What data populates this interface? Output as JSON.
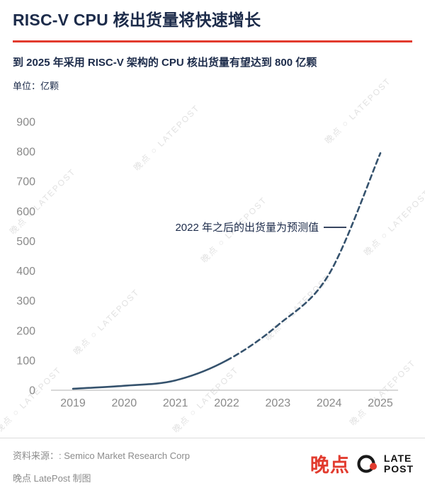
{
  "header": {
    "title": "RISC-V CPU 核出货量将快速增长",
    "subtitle": "到 2025 年采用 RISC-V 架构的 CPU 核出货量有望达到 800 亿颗",
    "unit_label": "单位：亿颗"
  },
  "chart_data": {
    "type": "line",
    "title": "RISC-V CPU 核出货量将快速增长",
    "xlabel": "",
    "ylabel": "亿颗",
    "categories": [
      "2019",
      "2020",
      "2021",
      "2022",
      "2023",
      "2024",
      "2025"
    ],
    "series": [
      {
        "name": "RISC-V CPU 核出货量（亿颗）",
        "values": [
          5,
          15,
          33,
          100,
          218,
          390,
          795
        ]
      }
    ],
    "forecast_from_category": "2022",
    "solid_until_index": 3,
    "ylim": [
      0,
      900
    ],
    "y_ticks": [
      0,
      100,
      200,
      300,
      400,
      500,
      600,
      700,
      800,
      900
    ],
    "grid": false,
    "legend_position": "none",
    "line_style": "solid until 2022, dashed (forecast) after 2022",
    "annotation": "2022 年之后的出货量为预测值"
  },
  "watermark": {
    "text": "晚点 ○ LATEPOST"
  },
  "footer": {
    "source": "资料来源：: Semico Market Research Corp",
    "credit": "晚点 LatePost 制图",
    "logo": {
      "cn": "晚点",
      "en_line1": "LATE",
      "en_line2": "POST"
    }
  },
  "colors": {
    "accent_red": "#e23b2e",
    "title_navy": "#1c2b4a",
    "curve": "#35526d",
    "axis_text": "#8a8a8a"
  }
}
